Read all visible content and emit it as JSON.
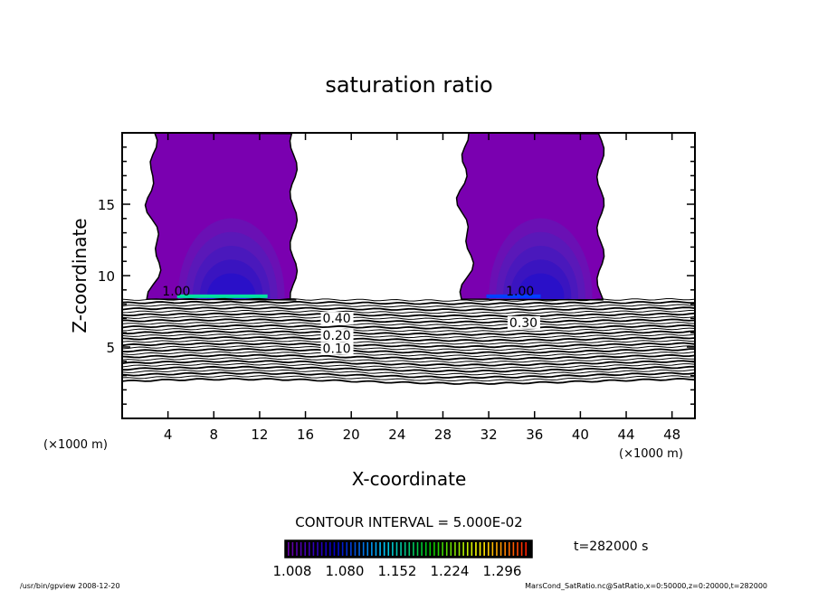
{
  "chart_data": {
    "type": "contour",
    "title": "saturation ratio",
    "xlabel": "X-coordinate",
    "ylabel": "Z-coordinate",
    "x_unit_left": "(×1000 m)",
    "x_unit_right": "(×1000 m)",
    "xlim": [
      0,
      50
    ],
    "ylim": [
      0,
      20
    ],
    "xticks": [
      4,
      8,
      12,
      16,
      20,
      24,
      28,
      32,
      36,
      40,
      44,
      48
    ],
    "yticks": [
      5,
      10,
      15
    ],
    "contour_labels": [
      "1.00",
      "1.00",
      "0.30",
      "0.20",
      "0.10",
      "0.40"
    ],
    "contour_interval_text": "CONTOUR INTERVAL = 5.000E-02",
    "colorbar": {
      "ticks": [
        "1.008",
        "1.080",
        "1.152",
        "1.224",
        "1.296"
      ],
      "range": [
        1.008,
        1.296
      ],
      "colors": [
        "#6a00a8",
        "#0000c8",
        "#00c8ff",
        "#00c800",
        "#ffff00",
        "#ff2000"
      ]
    },
    "shaded_regions": [
      {
        "x": [
          2.6,
          15.2
        ],
        "z": [
          8.3,
          20
        ]
      },
      {
        "x": [
          29.8,
          42.0
        ],
        "z": [
          8.3,
          20
        ]
      }
    ],
    "time_label": "t=282000 s"
  },
  "footer": {
    "left": "/usr/bin/gpview  2008-12-20",
    "right": "MarsCond_SatRatio.nc@SatRatio,x=0:50000,z=0:20000,t=282000"
  }
}
